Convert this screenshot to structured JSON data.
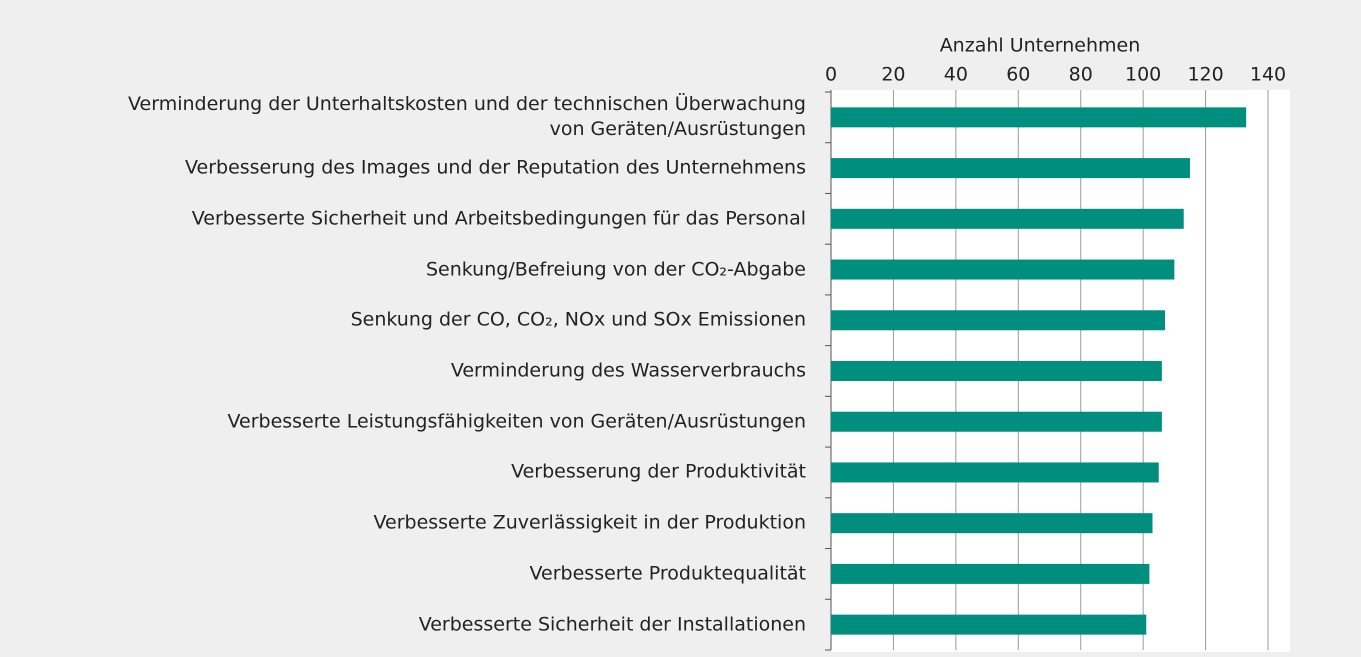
{
  "chart_data": {
    "type": "barh",
    "xlabel": "Anzahl Unternehmen",
    "categories": [
      "Verminderung der Unterhaltskosten und der technischen Überwachung\nvon Geräten/Ausrüstungen",
      "Verbesserung des Images und der Reputation des Unternehmens",
      "Verbesserte Sicherheit und Arbeitsbedingungen für das Personal",
      "Senkung/Befreiung von der CO₂-Abgabe",
      "Senkung der CO, CO₂, NOx und SOx Emissionen",
      "Verminderung des Wasserverbrauchs",
      "Verbesserte Leistungsfähigkeiten von Geräten/Ausrüstungen",
      "Verbesserung der Produktivität",
      "Verbesserte Zuverlässigkeit in der Produktion",
      "Verbesserte Produktequalität",
      "Verbesserte Sicherheit der Installationen"
    ],
    "values": [
      133,
      115,
      113,
      110,
      107,
      106,
      106,
      105,
      103,
      102,
      101
    ],
    "color": "#008f7e",
    "xlim": [
      0,
      140
    ],
    "xticks": [
      0,
      20,
      40,
      60,
      80,
      100,
      120,
      140
    ],
    "grid": true
  }
}
